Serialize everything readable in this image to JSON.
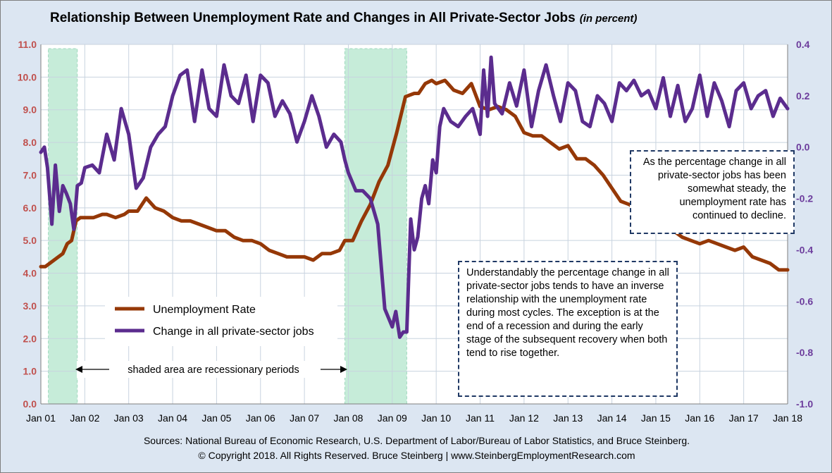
{
  "title": "Relationship Between Unemployment Rate and Changes in All Private-Sector Jobs",
  "title_suffix": "(in percent)",
  "sources_line1": "Sources: National Bureau of Economic Research, U.S. Department of Labor/Bureau of Labor Statistics, and Bruce Steinberg.",
  "sources_line2": "© Copyright 2018. All Rights Reserved. Bruce Steinberg | www.SteinbergEmploymentResearch.com",
  "note_right": "As the percentage change in all private-sector jobs has been somewhat steady, the unemployment rate has continued to decline.",
  "note_middle": "Understandably the percentage change in all private-sector jobs tends to have an inverse relationship with the unemployment rate during most cycles. The exception is at the end of a recession and during the early stage of the subsequent recovery when both tend to rise together.",
  "recession_label": "shaded area are recessionary periods",
  "colors": {
    "background": "#dce6f2",
    "unemployment": "#953807",
    "jobs": "#5b2c8e",
    "recession": "#c6ecd9",
    "grid": "#c8d3df",
    "right_axis_text": "#6c3c9c",
    "left_axis_text": "#c0504d"
  },
  "chart_data": {
    "type": "line",
    "x_tick_labels": [
      "Jan 01",
      "Jan 02",
      "Jan 03",
      "Jan 04",
      "Jan 05",
      "Jan 06",
      "Jan 07",
      "Jan 08",
      "Jan 09",
      "Jan 10",
      "Jan 11",
      "Jan 12",
      "Jan 13",
      "Jan 14",
      "Jan 15",
      "Jan 16",
      "Jan 17",
      "Jan 18"
    ],
    "x_range": [
      2001.0,
      2018.0
    ],
    "y_left": {
      "min": 0,
      "max": 11,
      "ticks": [
        "0.0",
        "1.0",
        "2.0",
        "3.0",
        "4.0",
        "5.0",
        "6.0",
        "7.0",
        "8.0",
        "9.0",
        "10.0",
        "11.0"
      ]
    },
    "y_right": {
      "min": -1.0,
      "max": 0.4,
      "ticks": [
        "-1.0",
        "-0.8",
        "-0.6",
        "-0.4",
        "-0.2",
        "0.0",
        "0.2",
        "0.4"
      ]
    },
    "recessions": [
      [
        2001.17,
        2001.83
      ],
      [
        2007.92,
        2009.33
      ]
    ],
    "legend": [
      {
        "label": "Unemployment Rate",
        "color": "#953807"
      },
      {
        "label": "Change in all private-sector jobs",
        "color": "#5b2c8e"
      }
    ],
    "series": [
      {
        "name": "Unemployment Rate",
        "axis": "left",
        "x": [
          2001.0,
          2001.1,
          2001.2,
          2001.3,
          2001.4,
          2001.5,
          2001.6,
          2001.7,
          2001.8,
          2001.9,
          2002.0,
          2002.2,
          2002.4,
          2002.5,
          2002.7,
          2002.9,
          2003.0,
          2003.2,
          2003.3,
          2003.4,
          2003.6,
          2003.8,
          2004.0,
          2004.2,
          2004.4,
          2004.6,
          2004.8,
          2005.0,
          2005.2,
          2005.4,
          2005.6,
          2005.8,
          2006.0,
          2006.2,
          2006.4,
          2006.6,
          2006.8,
          2007.0,
          2007.2,
          2007.4,
          2007.6,
          2007.8,
          2007.92,
          2008.1,
          2008.3,
          2008.5,
          2008.7,
          2008.9,
          2009.1,
          2009.3,
          2009.5,
          2009.6,
          2009.75,
          2009.9,
          2010.0,
          2010.2,
          2010.4,
          2010.6,
          2010.8,
          2011.0,
          2011.2,
          2011.4,
          2011.6,
          2011.8,
          2012.0,
          2012.2,
          2012.4,
          2012.6,
          2012.8,
          2013.0,
          2013.2,
          2013.4,
          2013.6,
          2013.8,
          2014.0,
          2014.2,
          2014.4,
          2014.6,
          2014.8,
          2015.0,
          2015.2,
          2015.4,
          2015.6,
          2015.8,
          2016.0,
          2016.2,
          2016.4,
          2016.6,
          2016.8,
          2017.0,
          2017.2,
          2017.4,
          2017.6,
          2017.8,
          2018.0
        ],
        "values": [
          4.2,
          4.2,
          4.3,
          4.4,
          4.5,
          4.6,
          4.9,
          5.0,
          5.6,
          5.7,
          5.7,
          5.7,
          5.8,
          5.8,
          5.7,
          5.8,
          5.9,
          5.9,
          6.1,
          6.3,
          6.0,
          5.9,
          5.7,
          5.6,
          5.6,
          5.5,
          5.4,
          5.3,
          5.3,
          5.1,
          5.0,
          5.0,
          4.9,
          4.7,
          4.6,
          4.5,
          4.5,
          4.5,
          4.4,
          4.6,
          4.6,
          4.7,
          5.0,
          5.0,
          5.6,
          6.1,
          6.8,
          7.3,
          8.3,
          9.4,
          9.5,
          9.5,
          9.8,
          9.9,
          9.8,
          9.9,
          9.6,
          9.5,
          9.8,
          9.1,
          9.0,
          9.1,
          9.0,
          8.8,
          8.3,
          8.2,
          8.2,
          8.0,
          7.8,
          7.9,
          7.5,
          7.5,
          7.3,
          7.0,
          6.6,
          6.2,
          6.1,
          5.9,
          5.7,
          5.6,
          5.4,
          5.3,
          5.1,
          5.0,
          4.9,
          5.0,
          4.9,
          4.8,
          4.7,
          4.8,
          4.5,
          4.4,
          4.3,
          4.1,
          4.1
        ]
      },
      {
        "name": "Change in all private-sector jobs",
        "axis": "right",
        "x": [
          2001.0,
          2001.08,
          2001.15,
          2001.25,
          2001.33,
          2001.42,
          2001.5,
          2001.58,
          2001.67,
          2001.75,
          2001.83,
          2001.92,
          2002.0,
          2002.17,
          2002.33,
          2002.5,
          2002.67,
          2002.83,
          2003.0,
          2003.17,
          2003.33,
          2003.5,
          2003.67,
          2003.83,
          2004.0,
          2004.17,
          2004.33,
          2004.5,
          2004.67,
          2004.83,
          2005.0,
          2005.17,
          2005.33,
          2005.5,
          2005.67,
          2005.83,
          2006.0,
          2006.17,
          2006.33,
          2006.5,
          2006.67,
          2006.83,
          2007.0,
          2007.17,
          2007.33,
          2007.5,
          2007.67,
          2007.83,
          2007.92,
          2008.0,
          2008.17,
          2008.33,
          2008.5,
          2008.67,
          2008.83,
          2009.0,
          2009.08,
          2009.17,
          2009.25,
          2009.33,
          2009.42,
          2009.5,
          2009.58,
          2009.67,
          2009.75,
          2009.83,
          2009.92,
          2010.0,
          2010.08,
          2010.17,
          2010.33,
          2010.5,
          2010.67,
          2010.83,
          2011.0,
          2011.08,
          2011.17,
          2011.25,
          2011.33,
          2011.5,
          2011.67,
          2011.83,
          2012.0,
          2012.17,
          2012.33,
          2012.5,
          2012.67,
          2012.83,
          2013.0,
          2013.17,
          2013.33,
          2013.5,
          2013.67,
          2013.83,
          2014.0,
          2014.17,
          2014.33,
          2014.5,
          2014.67,
          2014.83,
          2015.0,
          2015.17,
          2015.33,
          2015.5,
          2015.67,
          2015.83,
          2016.0,
          2016.17,
          2016.33,
          2016.5,
          2016.67,
          2016.83,
          2017.0,
          2017.17,
          2017.33,
          2017.5,
          2017.67,
          2017.83,
          2018.0
        ],
        "values": [
          -0.02,
          0.0,
          -0.08,
          -0.3,
          -0.07,
          -0.25,
          -0.15,
          -0.18,
          -0.22,
          -0.32,
          -0.15,
          -0.14,
          -0.08,
          -0.07,
          -0.1,
          0.05,
          -0.05,
          0.15,
          0.05,
          -0.16,
          -0.12,
          0.0,
          0.05,
          0.08,
          0.2,
          0.28,
          0.3,
          0.1,
          0.3,
          0.15,
          0.12,
          0.32,
          0.2,
          0.17,
          0.28,
          0.1,
          0.28,
          0.25,
          0.12,
          0.18,
          0.13,
          0.02,
          0.1,
          0.2,
          0.12,
          0.0,
          0.05,
          0.02,
          -0.05,
          -0.1,
          -0.17,
          -0.17,
          -0.2,
          -0.3,
          -0.63,
          -0.7,
          -0.64,
          -0.74,
          -0.72,
          -0.72,
          -0.28,
          -0.4,
          -0.35,
          -0.2,
          -0.15,
          -0.22,
          -0.05,
          -0.1,
          0.08,
          0.15,
          0.1,
          0.08,
          0.12,
          0.15,
          0.05,
          0.3,
          0.12,
          0.35,
          0.17,
          0.13,
          0.25,
          0.16,
          0.3,
          0.08,
          0.22,
          0.32,
          0.2,
          0.1,
          0.25,
          0.22,
          0.1,
          0.08,
          0.2,
          0.17,
          0.1,
          0.25,
          0.22,
          0.26,
          0.2,
          0.22,
          0.15,
          0.27,
          0.12,
          0.24,
          0.1,
          0.15,
          0.28,
          0.12,
          0.25,
          0.18,
          0.08,
          0.22,
          0.25,
          0.15,
          0.2,
          0.22,
          0.12,
          0.19,
          0.15
        ]
      }
    ]
  }
}
